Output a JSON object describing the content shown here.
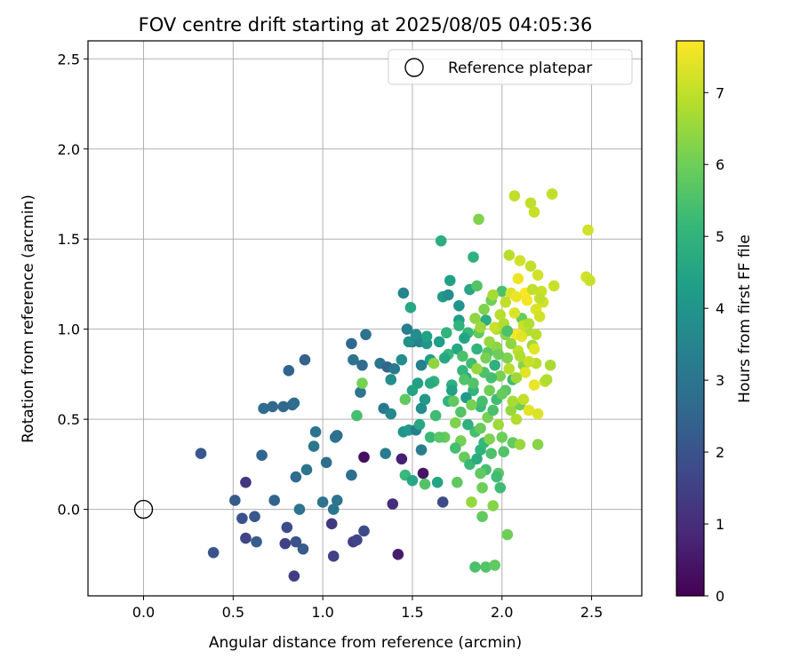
{
  "chart_data": {
    "type": "scatter",
    "title": "FOV centre drift starting at 2025/08/05 04:05:36",
    "xlabel": "Angular distance from reference (arcmin)",
    "ylabel": "Rotation from reference (arcmin)",
    "xlim": [
      -0.31,
      2.78
    ],
    "ylim": [
      -0.48,
      2.6
    ],
    "xticks": [
      "0.0",
      "0.5",
      "1.0",
      "1.5",
      "2.0",
      "2.5"
    ],
    "xtick_values": [
      0,
      0.5,
      1,
      1.5,
      2,
      2.5
    ],
    "yticks": [
      "0.0",
      "0.5",
      "1.0",
      "1.5",
      "2.0",
      "2.5"
    ],
    "ytick_values": [
      0,
      0.5,
      1,
      1.5,
      2,
      2.5
    ],
    "grid": true,
    "legend": {
      "position": "top-right",
      "label": "Reference platepar"
    },
    "reference_point": {
      "x": 0,
      "y": 0
    },
    "colorbar": {
      "label": "Hours from first FF file",
      "min": 0,
      "max": 7.72,
      "ticks": [
        "0",
        "1",
        "2",
        "3",
        "4",
        "5",
        "6",
        "7"
      ],
      "tick_values": [
        0,
        1,
        2,
        3,
        4,
        5,
        6,
        7
      ],
      "colormap": "viridis",
      "colors": [
        "#440154",
        "#482878",
        "#3e4989",
        "#31688e",
        "#26828e",
        "#1f9e89",
        "#35b779",
        "#6ece58",
        "#b5de2b",
        "#fde725"
      ]
    },
    "points": [
      [
        0.32,
        0.31,
        2.1
      ],
      [
        0.39,
        -0.24,
        2.0
      ],
      [
        0.51,
        0.05,
        2.2
      ],
      [
        0.55,
        -0.05,
        2.0
      ],
      [
        0.57,
        0.15,
        1.2
      ],
      [
        0.57,
        -0.16,
        1.6
      ],
      [
        0.62,
        -0.04,
        2.1
      ],
      [
        0.63,
        -0.18,
        2.3
      ],
      [
        0.66,
        0.3,
        2.5
      ],
      [
        0.67,
        0.56,
        2.7
      ],
      [
        0.72,
        0.57,
        2.6
      ],
      [
        0.73,
        0.05,
        2.5
      ],
      [
        0.78,
        0.57,
        2.6
      ],
      [
        0.79,
        -0.19,
        1.5
      ],
      [
        0.8,
        -0.1,
        1.8
      ],
      [
        0.81,
        0.77,
        2.5
      ],
      [
        0.83,
        0.58,
        2.6
      ],
      [
        0.84,
        0.59,
        2.8
      ],
      [
        0.84,
        -0.37,
        1.4
      ],
      [
        0.85,
        -0.18,
        2.0
      ],
      [
        0.85,
        0.18,
        2.7
      ],
      [
        0.87,
        0.0,
        2.9
      ],
      [
        0.89,
        -0.22,
        2.2
      ],
      [
        0.9,
        0.83,
        2.4
      ],
      [
        0.91,
        0.22,
        3.0
      ],
      [
        0.95,
        0.35,
        3.1
      ],
      [
        0.96,
        0.43,
        3.0
      ],
      [
        1.0,
        0.04,
        2.9
      ],
      [
        1.02,
        0.26,
        2.8
      ],
      [
        1.05,
        -0.08,
        1.3
      ],
      [
        1.06,
        -0.26,
        1.5
      ],
      [
        1.06,
        0.0,
        3.0
      ],
      [
        1.07,
        0.4,
        2.9
      ],
      [
        1.08,
        0.05,
        3.0
      ],
      [
        1.08,
        0.41,
        2.8
      ],
      [
        1.16,
        0.92,
        2.6
      ],
      [
        1.16,
        0.19,
        2.8
      ],
      [
        1.17,
        0.83,
        2.9
      ],
      [
        1.17,
        -0.18,
        1.4
      ],
      [
        1.19,
        -0.17,
        1.6
      ],
      [
        1.21,
        0.65,
        3.0
      ],
      [
        1.22,
        0.8,
        2.7
      ],
      [
        1.23,
        -0.12,
        1.8
      ],
      [
        1.23,
        0.29,
        0.3
      ],
      [
        1.24,
        0.97,
        2.9
      ],
      [
        1.19,
        0.52,
        5.4
      ],
      [
        1.22,
        0.7,
        6.1
      ],
      [
        1.32,
        0.81,
        3.0
      ],
      [
        1.34,
        0.56,
        3.1
      ],
      [
        1.35,
        0.31,
        3.2
      ],
      [
        1.36,
        0.79,
        2.5
      ],
      [
        1.38,
        0.72,
        3.8
      ],
      [
        1.38,
        0.53,
        3.6
      ],
      [
        1.39,
        0.03,
        1.0
      ],
      [
        1.4,
        0.78,
        3.1
      ],
      [
        1.42,
        -0.25,
        0.6
      ],
      [
        1.44,
        0.83,
        3.8
      ],
      [
        1.44,
        0.28,
        0.7
      ],
      [
        1.45,
        1.2,
        3.5
      ],
      [
        1.45,
        0.43,
        4.0
      ],
      [
        1.46,
        0.19,
        5.2
      ],
      [
        1.47,
        1.0,
        3.3
      ],
      [
        1.48,
        0.44,
        4.2
      ],
      [
        1.49,
        1.12,
        4.6
      ],
      [
        1.5,
        0.93,
        3.2
      ],
      [
        1.5,
        0.16,
        4.6
      ],
      [
        1.52,
        0.44,
        3.3
      ],
      [
        1.53,
        0.7,
        4.4
      ],
      [
        1.54,
        0.47,
        4.6
      ],
      [
        1.54,
        0.93,
        3.5
      ],
      [
        1.55,
        0.56,
        3.8
      ],
      [
        1.55,
        0.33,
        3.3
      ],
      [
        1.55,
        0.8,
        3.4
      ],
      [
        1.56,
        0.2,
        0.4
      ],
      [
        1.57,
        0.14,
        5.6
      ],
      [
        1.58,
        0.92,
        4.0
      ],
      [
        1.6,
        0.4,
        5.2
      ],
      [
        1.6,
        0.83,
        4.3
      ],
      [
        1.62,
        0.71,
        5.0
      ],
      [
        1.63,
        0.52,
        5.3
      ],
      [
        1.64,
        0.15,
        4.5
      ],
      [
        1.65,
        0.93,
        4.3
      ],
      [
        1.66,
        1.49,
        4.8
      ],
      [
        1.67,
        1.18,
        4.2
      ],
      [
        1.67,
        0.04,
        1.8
      ],
      [
        1.68,
        0.4,
        5.9
      ],
      [
        1.69,
        0.98,
        5.0
      ],
      [
        1.7,
        0.86,
        5.2
      ],
      [
        1.7,
        0.6,
        5.0
      ],
      [
        1.71,
        1.27,
        4.4
      ],
      [
        1.72,
        0.69,
        4.9
      ],
      [
        1.73,
        0.6,
        5.8
      ],
      [
        1.74,
        0.48,
        6.2
      ],
      [
        1.75,
        0.89,
        4.6
      ],
      [
        1.75,
        0.15,
        5.8
      ],
      [
        1.76,
        1.13,
        4.0
      ],
      [
        1.77,
        0.54,
        5.6
      ],
      [
        1.77,
        0.38,
        6.1
      ],
      [
        1.78,
        0.85,
        5.5
      ],
      [
        1.79,
        0.29,
        5.9
      ],
      [
        1.8,
        0.73,
        4.8
      ],
      [
        1.81,
        0.98,
        5.2
      ],
      [
        1.82,
        1.22,
        4.6
      ],
      [
        1.83,
        0.04,
        6.5
      ],
      [
        1.84,
        0.66,
        5.0
      ],
      [
        1.84,
        1.4,
        4.9
      ],
      [
        1.85,
        0.43,
        5.4
      ],
      [
        1.86,
        1.24,
        5.6
      ],
      [
        1.86,
        0.89,
        5.0
      ],
      [
        1.87,
        1.61,
        6.2
      ],
      [
        1.88,
        0.57,
        5.2
      ],
      [
        1.88,
        0.33,
        5.0
      ],
      [
        1.89,
        0.12,
        6.0
      ],
      [
        1.89,
        -0.04,
        5.8
      ],
      [
        1.9,
        0.76,
        5.5
      ],
      [
        1.91,
        1.05,
        4.8
      ],
      [
        1.91,
        0.22,
        5.4
      ],
      [
        1.92,
        0.51,
        6.1
      ],
      [
        1.93,
        0.93,
        6.5
      ],
      [
        1.94,
        1.16,
        6.0
      ],
      [
        1.95,
        0.55,
        5.5
      ],
      [
        1.95,
        0.02,
        6.3
      ],
      [
        1.96,
        0.8,
        4.9
      ],
      [
        1.97,
        0.61,
        5.3
      ],
      [
        1.97,
        1.0,
        6.7
      ],
      [
        1.98,
        0.2,
        5.7
      ],
      [
        1.99,
        0.74,
        6.1
      ],
      [
        2.0,
        1.21,
        5.5
      ],
      [
        2.0,
        0.4,
        6.0
      ],
      [
        2.02,
        0.97,
        6.3
      ],
      [
        2.02,
        0.66,
        5.7
      ],
      [
        2.03,
        0.84,
        6.2
      ],
      [
        2.03,
        -0.14,
        6.0
      ],
      [
        2.05,
        1.2,
        7.3
      ],
      [
        2.05,
        0.55,
        6.5
      ],
      [
        2.06,
        0.37,
        5.8
      ],
      [
        2.06,
        0.72,
        5.3
      ],
      [
        2.07,
        1.74,
        7.0
      ],
      [
        2.08,
        0.97,
        7.7
      ],
      [
        2.08,
        0.5,
        6.8
      ],
      [
        2.09,
        1.28,
        7.5
      ],
      [
        2.09,
        0.88,
        7.0
      ],
      [
        2.1,
        0.36,
        6.5
      ],
      [
        2.1,
        0.58,
        6.0
      ],
      [
        2.11,
        1.06,
        5.9
      ],
      [
        2.12,
        0.8,
        6.3
      ],
      [
        2.13,
        1.2,
        7.7
      ],
      [
        2.14,
        0.99,
        6.8
      ],
      [
        2.15,
        0.55,
        7.4
      ],
      [
        2.16,
        1.35,
        7.0
      ],
      [
        2.16,
        1.7,
        7.0
      ],
      [
        2.17,
        0.91,
        6.6
      ],
      [
        2.18,
        1.65,
        7.1
      ],
      [
        2.18,
        0.69,
        7.5
      ],
      [
        2.19,
        0.81,
        6.9
      ],
      [
        2.2,
        1.3,
        7.2
      ],
      [
        2.2,
        0.53,
        7.3
      ],
      [
        2.2,
        0.36,
        6.3
      ],
      [
        2.22,
        1.21,
        7.1
      ],
      [
        2.23,
        1.15,
        7.2
      ],
      [
        2.24,
        0.71,
        7.0
      ],
      [
        2.25,
        0.72,
        6.8
      ],
      [
        2.27,
        0.8,
        6.7
      ],
      [
        2.28,
        1.75,
        7.0
      ],
      [
        2.29,
        1.24,
        7.1
      ],
      [
        2.47,
        1.29,
        7.2
      ],
      [
        2.48,
        1.55,
        7.2
      ],
      [
        2.49,
        1.27,
        7.1
      ],
      [
        1.78,
        0.77,
        5.1
      ],
      [
        1.83,
        0.81,
        5.3
      ],
      [
        1.85,
        1.06,
        6.4
      ],
      [
        1.87,
        0.98,
        5.8
      ],
      [
        1.9,
        1.11,
        6.2
      ],
      [
        1.92,
        0.87,
        5.7
      ],
      [
        1.93,
        0.66,
        6.0
      ],
      [
        1.95,
        1.19,
        6.7
      ],
      [
        1.96,
        1.01,
        7.1
      ],
      [
        1.97,
        0.9,
        6.4
      ],
      [
        1.98,
        0.47,
        6.6
      ],
      [
        1.99,
        1.08,
        6.9
      ],
      [
        2.01,
        1.03,
        6.8
      ],
      [
        2.01,
        0.32,
        5.6
      ],
      [
        2.02,
        1.15,
        7.0
      ],
      [
        2.04,
        0.78,
        6.9
      ],
      [
        2.04,
        1.41,
        6.9
      ],
      [
        2.06,
        0.6,
        6.7
      ],
      [
        2.07,
        1.09,
        7.3
      ],
      [
        2.08,
        1.18,
        7.5
      ],
      [
        2.1,
        1.38,
        7.2
      ],
      [
        2.11,
        0.96,
        7.4
      ],
      [
        2.12,
        1.02,
        7.1
      ],
      [
        2.13,
        0.76,
        7.4
      ],
      [
        2.14,
        1.16,
        7.6
      ],
      [
        2.15,
        1.03,
        6.8
      ],
      [
        2.17,
        1.22,
        7.0
      ],
      [
        2.19,
        1.11,
        7.3
      ],
      [
        2.21,
        1.17,
        7.0
      ],
      [
        2.19,
        0.97,
        6.9
      ],
      [
        1.72,
        0.66,
        4.4
      ],
      [
        1.74,
        0.34,
        5.4
      ],
      [
        1.76,
        1.05,
        4.3
      ],
      [
        1.79,
        0.95,
        4.5
      ],
      [
        1.8,
        0.62,
        4.2
      ],
      [
        1.81,
        0.47,
        4.9
      ],
      [
        1.82,
        0.25,
        5.2
      ],
      [
        1.84,
        0.7,
        5.6
      ],
      [
        1.86,
        0.28,
        4.8
      ],
      [
        1.88,
        0.45,
        5.9
      ],
      [
        1.89,
        0.6,
        5.4
      ],
      [
        1.9,
        0.37,
        5.1
      ],
      [
        1.91,
        -0.32,
        5.6
      ],
      [
        1.93,
        0.39,
        6.2
      ],
      [
        1.94,
        0.31,
        5.5
      ],
      [
        1.96,
        -0.31,
        5.8
      ],
      [
        1.97,
        0.18,
        5.3
      ],
      [
        1.99,
        0.12,
        5.3
      ],
      [
        1.85,
        -0.32,
        5.5
      ],
      [
        1.88,
        0.2,
        5.8
      ],
      [
        1.65,
        0.4,
        5.7
      ],
      [
        1.62,
        0.81,
        6.4
      ],
      [
        1.58,
        0.96,
        4.4
      ],
      [
        1.52,
        0.97,
        3.8
      ],
      [
        1.48,
        0.93,
        3.9
      ],
      [
        1.46,
        0.61,
        5.8
      ],
      [
        1.5,
        0.66,
        4.5
      ],
      [
        1.57,
        0.61,
        4.1
      ],
      [
        1.6,
        0.7,
        4.7
      ],
      [
        1.68,
        0.84,
        4.6
      ],
      [
        1.7,
        1.19,
        3.8
      ],
      [
        1.76,
        1.02,
        5.0
      ],
      [
        1.79,
        0.72,
        5.6
      ],
      [
        1.83,
        0.58,
        6.1
      ],
      [
        1.86,
        0.78,
        6.5
      ],
      [
        1.88,
        1.01,
        6.6
      ],
      [
        1.91,
        0.84,
        6.1
      ],
      [
        1.94,
        0.73,
        5.4
      ],
      [
        1.98,
        0.86,
        6.0
      ],
      [
        2.0,
        0.64,
        5.9
      ],
      [
        2.03,
        0.99,
        5.5
      ],
      [
        2.05,
        0.92,
        6.4
      ],
      [
        2.08,
        0.73,
        6.6
      ],
      [
        2.1,
        0.85,
        6.8
      ],
      [
        2.12,
        0.61,
        7.0
      ],
      [
        2.15,
        0.82,
        7.1
      ],
      [
        2.18,
        0.89,
        7.4
      ],
      [
        2.21,
        1.07,
        7.2
      ]
    ]
  }
}
